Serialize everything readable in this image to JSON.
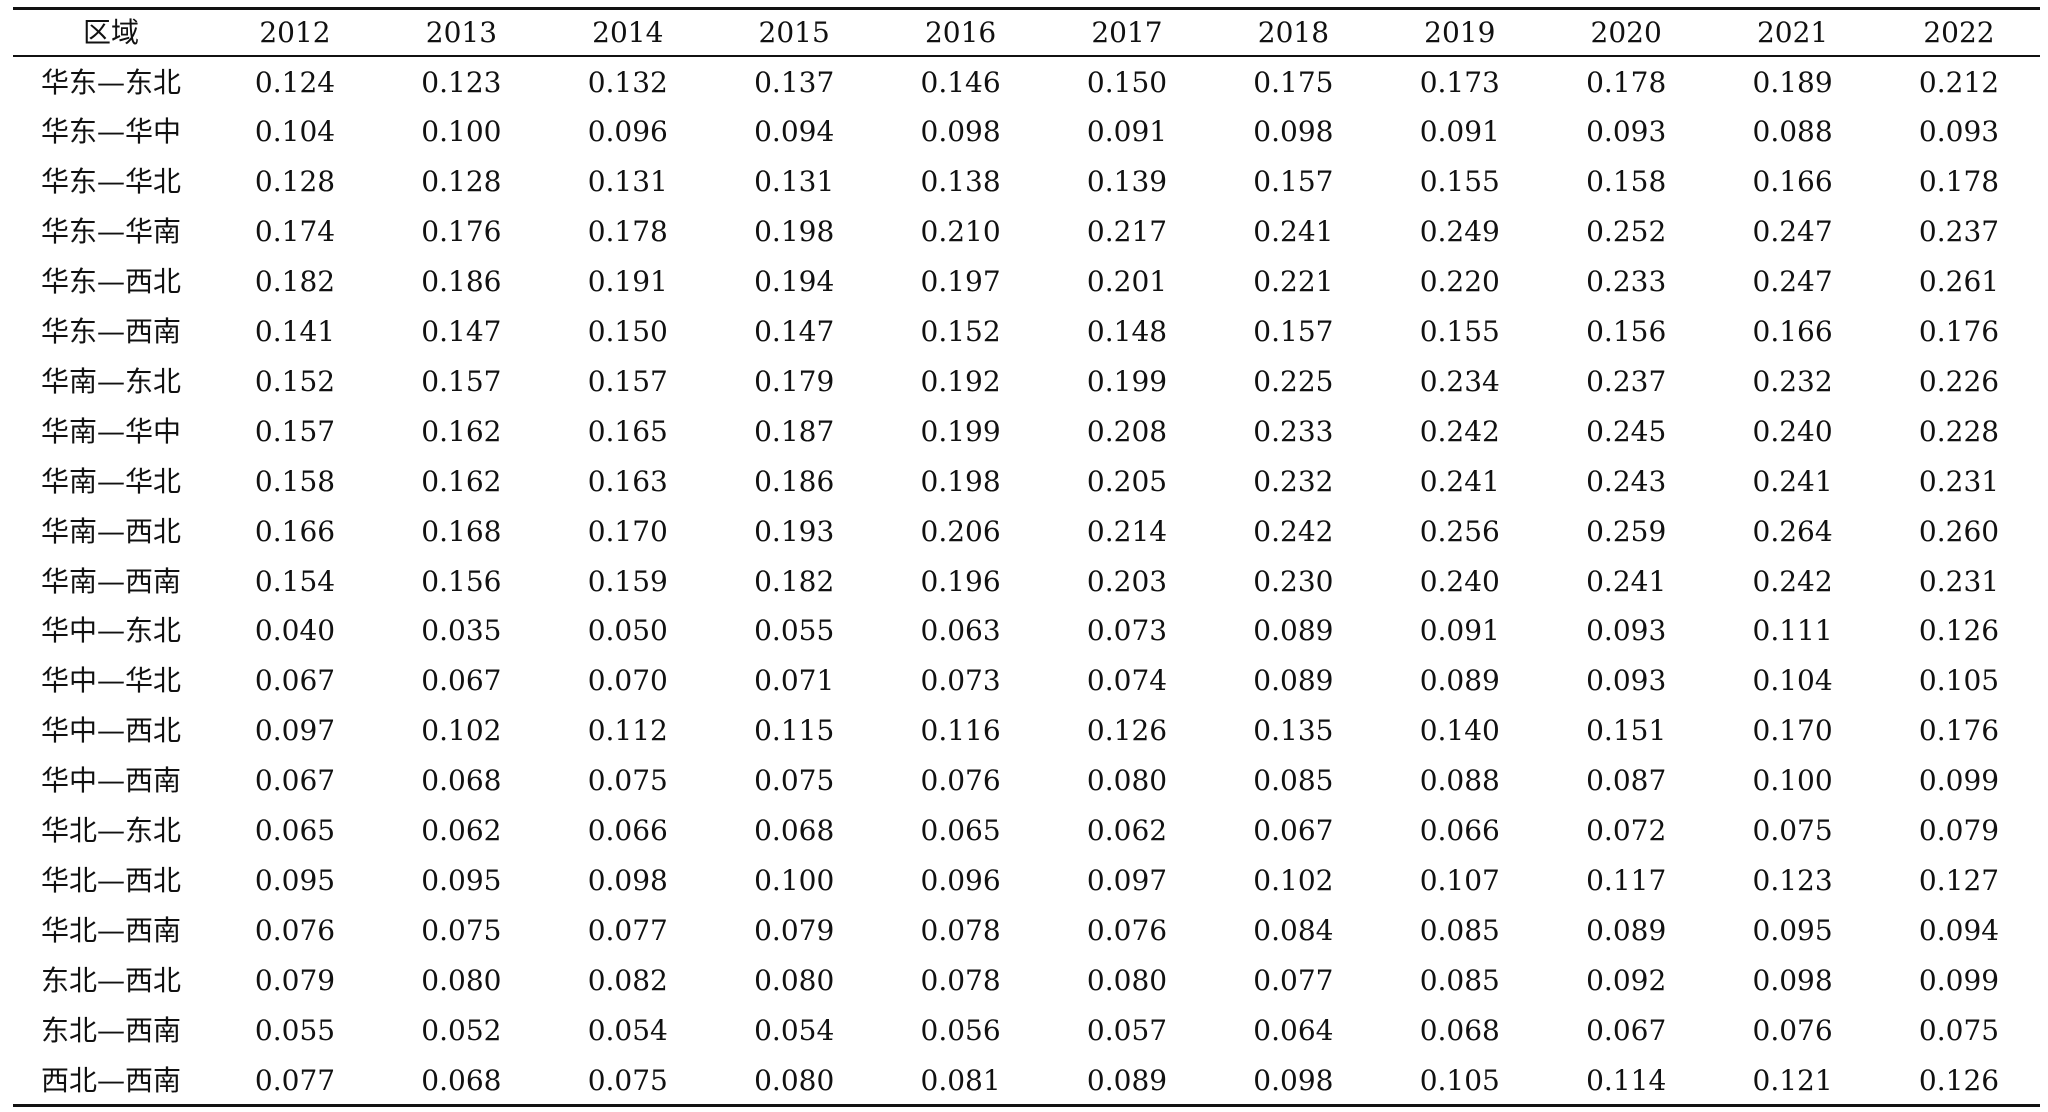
{
  "table": {
    "header": [
      "区域",
      "2012",
      "2013",
      "2014",
      "2015",
      "2016",
      "2017",
      "2018",
      "2019",
      "2020",
      "2021",
      "2022"
    ],
    "rows": [
      [
        "华东—东北",
        "0.124",
        "0.123",
        "0.132",
        "0.137",
        "0.146",
        "0.150",
        "0.175",
        "0.173",
        "0.178",
        "0.189",
        "0.212"
      ],
      [
        "华东—华中",
        "0.104",
        "0.100",
        "0.096",
        "0.094",
        "0.098",
        "0.091",
        "0.098",
        "0.091",
        "0.093",
        "0.088",
        "0.093"
      ],
      [
        "华东—华北",
        "0.128",
        "0.128",
        "0.131",
        "0.131",
        "0.138",
        "0.139",
        "0.157",
        "0.155",
        "0.158",
        "0.166",
        "0.178"
      ],
      [
        "华东—华南",
        "0.174",
        "0.176",
        "0.178",
        "0.198",
        "0.210",
        "0.217",
        "0.241",
        "0.249",
        "0.252",
        "0.247",
        "0.237"
      ],
      [
        "华东—西北",
        "0.182",
        "0.186",
        "0.191",
        "0.194",
        "0.197",
        "0.201",
        "0.221",
        "0.220",
        "0.233",
        "0.247",
        "0.261"
      ],
      [
        "华东—西南",
        "0.141",
        "0.147",
        "0.150",
        "0.147",
        "0.152",
        "0.148",
        "0.157",
        "0.155",
        "0.156",
        "0.166",
        "0.176"
      ],
      [
        "华南—东北",
        "0.152",
        "0.157",
        "0.157",
        "0.179",
        "0.192",
        "0.199",
        "0.225",
        "0.234",
        "0.237",
        "0.232",
        "0.226"
      ],
      [
        "华南—华中",
        "0.157",
        "0.162",
        "0.165",
        "0.187",
        "0.199",
        "0.208",
        "0.233",
        "0.242",
        "0.245",
        "0.240",
        "0.228"
      ],
      [
        "华南—华北",
        "0.158",
        "0.162",
        "0.163",
        "0.186",
        "0.198",
        "0.205",
        "0.232",
        "0.241",
        "0.243",
        "0.241",
        "0.231"
      ],
      [
        "华南—西北",
        "0.166",
        "0.168",
        "0.170",
        "0.193",
        "0.206",
        "0.214",
        "0.242",
        "0.256",
        "0.259",
        "0.264",
        "0.260"
      ],
      [
        "华南—西南",
        "0.154",
        "0.156",
        "0.159",
        "0.182",
        "0.196",
        "0.203",
        "0.230",
        "0.240",
        "0.241",
        "0.242",
        "0.231"
      ],
      [
        "华中—东北",
        "0.040",
        "0.035",
        "0.050",
        "0.055",
        "0.063",
        "0.073",
        "0.089",
        "0.091",
        "0.093",
        "0.111",
        "0.126"
      ],
      [
        "华中—华北",
        "0.067",
        "0.067",
        "0.070",
        "0.071",
        "0.073",
        "0.074",
        "0.089",
        "0.089",
        "0.093",
        "0.104",
        "0.105"
      ],
      [
        "华中—西北",
        "0.097",
        "0.102",
        "0.112",
        "0.115",
        "0.116",
        "0.126",
        "0.135",
        "0.140",
        "0.151",
        "0.170",
        "0.176"
      ],
      [
        "华中—西南",
        "0.067",
        "0.068",
        "0.075",
        "0.075",
        "0.076",
        "0.080",
        "0.085",
        "0.088",
        "0.087",
        "0.100",
        "0.099"
      ],
      [
        "华北—东北",
        "0.065",
        "0.062",
        "0.066",
        "0.068",
        "0.065",
        "0.062",
        "0.067",
        "0.066",
        "0.072",
        "0.075",
        "0.079"
      ],
      [
        "华北—西北",
        "0.095",
        "0.095",
        "0.098",
        "0.100",
        "0.096",
        "0.097",
        "0.102",
        "0.107",
        "0.117",
        "0.123",
        "0.127"
      ],
      [
        "华北—西南",
        "0.076",
        "0.075",
        "0.077",
        "0.079",
        "0.078",
        "0.076",
        "0.084",
        "0.085",
        "0.089",
        "0.095",
        "0.094"
      ],
      [
        "东北—西北",
        "0.079",
        "0.080",
        "0.082",
        "0.080",
        "0.078",
        "0.080",
        "0.077",
        "0.085",
        "0.092",
        "0.098",
        "0.099"
      ],
      [
        "东北—西南",
        "0.055",
        "0.052",
        "0.054",
        "0.054",
        "0.056",
        "0.057",
        "0.064",
        "0.068",
        "0.067",
        "0.076",
        "0.075"
      ],
      [
        "西北—西南",
        "0.077",
        "0.068",
        "0.075",
        "0.080",
        "0.081",
        "0.089",
        "0.098",
        "0.105",
        "0.114",
        "0.121",
        "0.126"
      ]
    ]
  }
}
